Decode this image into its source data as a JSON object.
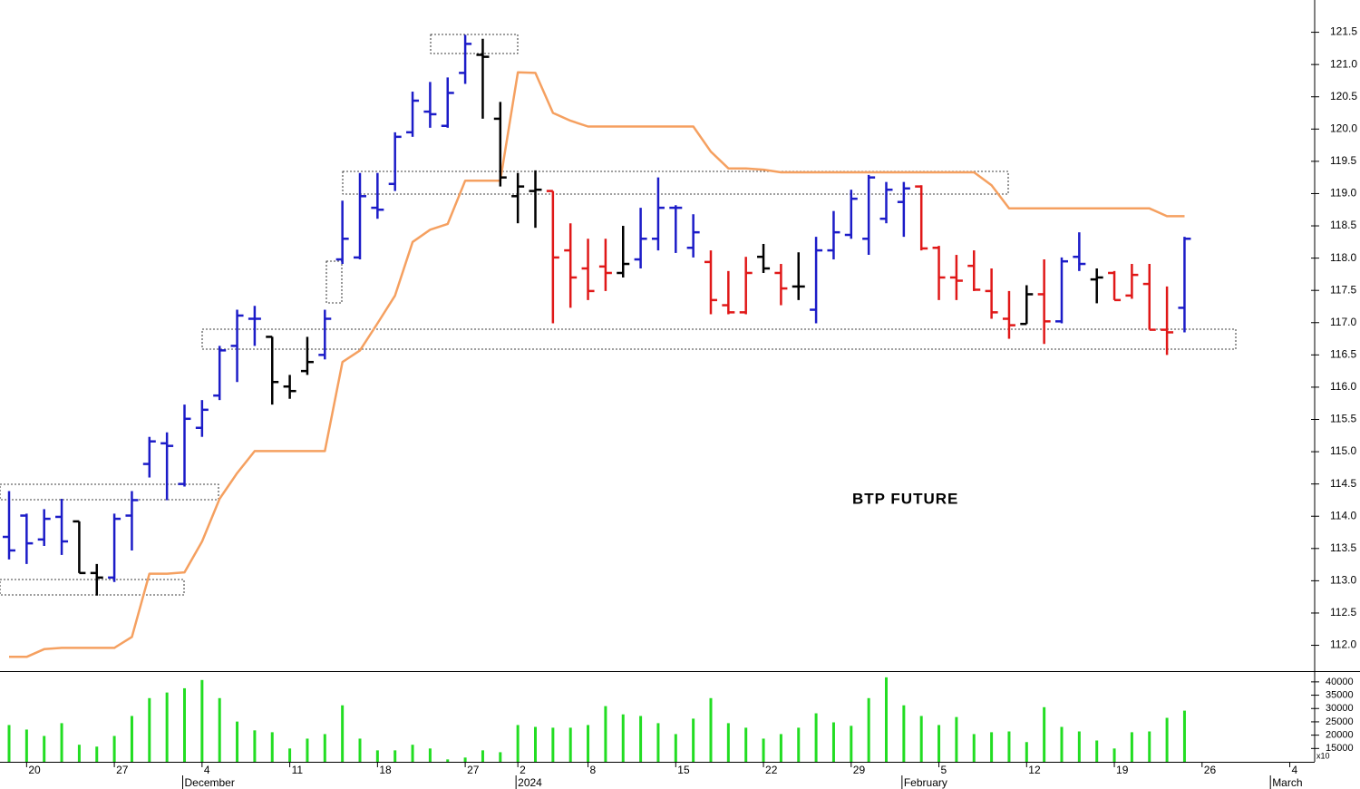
{
  "chart_data": {
    "type": "ohlc",
    "annotation": "BTP FUTURE",
    "categories": [
      null,
      "20",
      null,
      null,
      null,
      null,
      "27",
      null,
      null,
      null,
      null,
      "4",
      null,
      null,
      null,
      null,
      "11",
      null,
      null,
      null,
      null,
      "18",
      null,
      null,
      null,
      null,
      "27",
      null,
      null,
      "2",
      null,
      null,
      null,
      "8",
      null,
      null,
      null,
      null,
      "15",
      null,
      null,
      null,
      null,
      "22",
      null,
      null,
      null,
      null,
      "29",
      null,
      null,
      null,
      null,
      "5",
      null,
      null,
      null,
      null,
      "12",
      null,
      null,
      null,
      null,
      "19",
      null,
      null,
      null,
      null,
      "26",
      null,
      null,
      null,
      null,
      "4",
      null
    ],
    "months": [
      null,
      null,
      null,
      null,
      null,
      null,
      null,
      null,
      null,
      null,
      "December",
      null,
      null,
      null,
      null,
      null,
      null,
      null,
      null,
      null,
      null,
      null,
      null,
      null,
      null,
      null,
      null,
      null,
      null,
      "2024",
      null,
      null,
      null,
      null,
      null,
      null,
      null,
      null,
      null,
      null,
      null,
      null,
      null,
      null,
      null,
      null,
      null,
      null,
      null,
      null,
      null,
      "February",
      null,
      null,
      null,
      null,
      null,
      null,
      null,
      null,
      null,
      null,
      null,
      null,
      null,
      null,
      null,
      null,
      null,
      null,
      null,
      null,
      "March",
      null,
      null
    ],
    "open": [
      113.68,
      114.01,
      113.64,
      113.99,
      113.92,
      113.12,
      113.05,
      114.01,
      114.81,
      115.13,
      114.5,
      115.37,
      115.87,
      116.64,
      117.06,
      116.78,
      116.01,
      116.25,
      116.5,
      117.98,
      118.01,
      118.78,
      119.15,
      119.95,
      120.27,
      120.05,
      120.87,
      121.15,
      120.16,
      118.96,
      119.04,
      119.04,
      118.12,
      117.84,
      117.87,
      117.77,
      117.98,
      118.3,
      118.78,
      118.16,
      117.94,
      117.27,
      117.16,
      118.02,
      117.77,
      117.56,
      117.2,
      118.12,
      118.36,
      118.3,
      118.61,
      118.87,
      119.11,
      118.16,
      117.7,
      117.88,
      117.49,
      117.06,
      116.98,
      117.44,
      117.02,
      118.02,
      117.67,
      117.77,
      117.42,
      117.6,
      116.89,
      117.23,
      null,
      null,
      null,
      null,
      null,
      null,
      null
    ],
    "high": [
      114.39,
      114.04,
      114.11,
      114.27,
      113.92,
      113.26,
      114.04,
      114.39,
      115.23,
      115.3,
      115.73,
      115.8,
      116.64,
      117.2,
      117.26,
      116.78,
      116.19,
      116.78,
      117.2,
      118.89,
      119.32,
      119.32,
      119.95,
      120.58,
      120.73,
      120.8,
      121.46,
      121.4,
      120.42,
      119.32,
      119.36,
      119.04,
      118.54,
      118.3,
      118.3,
      118.5,
      118.78,
      119.25,
      118.82,
      118.68,
      118.12,
      117.8,
      118.02,
      118.22,
      117.91,
      118.09,
      118.33,
      118.73,
      119.06,
      119.29,
      119.18,
      119.18,
      119.13,
      118.19,
      118.05,
      118.12,
      117.84,
      117.49,
      117.58,
      117.98,
      118.01,
      118.4,
      117.84,
      117.8,
      117.91,
      117.91,
      117.56,
      118.33,
      null,
      null,
      null,
      null,
      null,
      null,
      null
    ],
    "low": [
      113.33,
      113.26,
      113.54,
      113.4,
      113.12,
      112.77,
      112.98,
      113.47,
      114.6,
      114.25,
      114.46,
      115.23,
      115.8,
      116.08,
      116.64,
      115.73,
      115.82,
      116.19,
      116.43,
      117.91,
      117.98,
      118.61,
      119.04,
      119.88,
      120.02,
      120.02,
      120.7,
      120.16,
      119.11,
      118.54,
      118.47,
      116.99,
      117.23,
      117.35,
      117.49,
      117.7,
      117.84,
      118.12,
      118.08,
      118.01,
      117.13,
      117.13,
      117.13,
      117.77,
      117.27,
      117.35,
      116.99,
      117.98,
      118.3,
      118.05,
      118.54,
      118.33,
      118.12,
      117.35,
      117.35,
      117.49,
      117.06,
      116.75,
      116.98,
      116.67,
      116.99,
      117.8,
      117.3,
      117.35,
      117.37,
      116.89,
      116.5,
      116.85,
      null,
      null,
      null,
      null,
      null,
      null,
      null
    ],
    "close": [
      113.47,
      113.58,
      113.96,
      113.61,
      113.12,
      113.05,
      113.96,
      114.25,
      115.16,
      115.09,
      115.51,
      115.65,
      116.57,
      117.11,
      117.06,
      116.08,
      115.94,
      116.39,
      117.06,
      118.3,
      118.96,
      118.75,
      119.88,
      120.44,
      120.23,
      120.56,
      121.32,
      121.12,
      119.25,
      119.11,
      119.06,
      118.01,
      117.7,
      117.49,
      117.77,
      117.91,
      118.3,
      118.78,
      118.78,
      118.4,
      117.35,
      117.16,
      117.77,
      117.84,
      117.53,
      117.56,
      118.12,
      118.4,
      118.92,
      119.25,
      119.06,
      119.08,
      118.15,
      117.7,
      117.65,
      117.51,
      117.16,
      116.96,
      117.44,
      117.02,
      117.95,
      117.91,
      117.7,
      117.35,
      117.74,
      116.89,
      116.85,
      118.3,
      null,
      null,
      null,
      null,
      null,
      null,
      null
    ],
    "bar_colors": [
      "#1c1cc8",
      "#1c1cc8",
      "#1c1cc8",
      "#1c1cc8",
      "#000000",
      "#000000",
      "#1c1cc8",
      "#1c1cc8",
      "#1c1cc8",
      "#1c1cc8",
      "#1c1cc8",
      "#1c1cc8",
      "#1c1cc8",
      "#1c1cc8",
      "#1c1cc8",
      "#000000",
      "#000000",
      "#000000",
      "#1c1cc8",
      "#1c1cc8",
      "#1c1cc8",
      "#1c1cc8",
      "#1c1cc8",
      "#1c1cc8",
      "#1c1cc8",
      "#1c1cc8",
      "#1c1cc8",
      "#000000",
      "#000000",
      "#000000",
      "#000000",
      "#e01818",
      "#e01818",
      "#e01818",
      "#e01818",
      "#000000",
      "#1c1cc8",
      "#1c1cc8",
      "#1c1cc8",
      "#1c1cc8",
      "#e01818",
      "#e01818",
      "#e01818",
      "#000000",
      "#e01818",
      "#000000",
      "#1c1cc8",
      "#1c1cc8",
      "#1c1cc8",
      "#1c1cc8",
      "#1c1cc8",
      "#1c1cc8",
      "#e01818",
      "#e01818",
      "#e01818",
      "#e01818",
      "#e01818",
      "#e01818",
      "#000000",
      "#e01818",
      "#1c1cc8",
      "#1c1cc8",
      "#000000",
      "#e01818",
      "#e01818",
      "#e01818",
      "#e01818",
      "#1c1cc8",
      null,
      null,
      null,
      null,
      null,
      null,
      null
    ],
    "line": {
      "color": "#f5a060",
      "values": [
        111.82,
        111.82,
        111.94,
        111.96,
        111.96,
        111.96,
        111.96,
        112.13,
        113.11,
        113.11,
        113.13,
        113.61,
        114.27,
        114.67,
        115.01,
        115.01,
        115.01,
        115.01,
        115.01,
        116.39,
        116.57,
        116.99,
        117.42,
        118.25,
        118.44,
        118.53,
        119.2,
        119.2,
        119.2,
        120.88,
        120.87,
        120.25,
        120.13,
        120.04,
        120.04,
        120.04,
        120.04,
        120.04,
        120.04,
        120.04,
        119.65,
        119.39,
        119.39,
        119.37,
        119.33,
        119.33,
        119.33,
        119.33,
        119.33,
        119.33,
        119.33,
        119.33,
        119.33,
        119.33,
        119.33,
        119.33,
        119.13,
        118.77,
        118.77,
        118.77,
        118.77,
        118.77,
        118.77,
        118.77,
        118.77,
        118.77,
        118.65,
        118.65,
        null,
        null,
        null,
        null,
        null,
        null,
        null
      ]
    },
    "ylim": [
      111.6,
      122
    ],
    "yticks": [
      {
        "value": 112,
        "label": "112.0"
      },
      112.5,
      {
        "value": 113,
        "label": "113.0"
      },
      113.5,
      {
        "value": 114,
        "label": "114.0"
      },
      114.5,
      {
        "value": 115,
        "label": "115.0"
      },
      115.5,
      {
        "value": 116,
        "label": "116.0"
      },
      116.5,
      {
        "value": 117,
        "label": "117.0"
      },
      117.5,
      {
        "value": 118,
        "label": "118.0"
      },
      118.5,
      {
        "value": 119,
        "label": "119.0"
      },
      119.5,
      {
        "value": 120,
        "label": "120.0"
      },
      120.5,
      {
        "value": 121,
        "label": "121.0"
      },
      121.5
    ],
    "grid": false,
    "volume": {
      "type": "bar",
      "color": "#22dd22",
      "scale_label": "x10",
      "values": [
        23800,
        22100,
        19700,
        24500,
        16400,
        15700,
        19700,
        27200,
        33900,
        36000,
        37600,
        40700,
        33900,
        25100,
        21800,
        21100,
        15000,
        18700,
        20400,
        31200,
        18700,
        14300,
        14300,
        16400,
        15000,
        10900,
        11600,
        14300,
        13600,
        23800,
        23100,
        22800,
        22800,
        23800,
        30900,
        27800,
        27200,
        24500,
        20400,
        26200,
        33900,
        24500,
        22800,
        18700,
        20400,
        22800,
        28200,
        24800,
        23500,
        33900,
        41700,
        31200,
        27200,
        23800,
        26800,
        20400,
        21100,
        21400,
        17400,
        30500,
        23100,
        21400,
        18000,
        15000,
        21100,
        21400,
        26500,
        29200,
        null,
        null,
        null,
        null,
        null,
        null,
        null
      ],
      "ylim": [
        10000,
        43700
      ],
      "yticks": [
        15000,
        20000,
        25000,
        30000,
        35000,
        40000
      ]
    }
  }
}
